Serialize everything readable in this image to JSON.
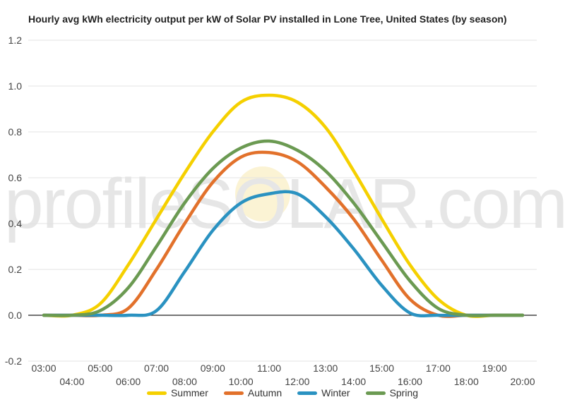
{
  "chart_data": {
    "type": "line",
    "title": "Hourly avg kWh electricity output per kW of Solar PV installed in Lone Tree, United States (by season)",
    "xlabel": "",
    "ylabel": "",
    "x": [
      "03:00",
      "04:00",
      "05:00",
      "06:00",
      "07:00",
      "08:00",
      "09:00",
      "10:00",
      "11:00",
      "12:00",
      "13:00",
      "14:00",
      "15:00",
      "16:00",
      "17:00",
      "18:00",
      "19:00",
      "20:00"
    ],
    "ylim": [
      -0.2,
      1.2
    ],
    "yticks": [
      "1.2",
      "1.0",
      "0.8",
      "0.6",
      "0.4",
      "0.2",
      "0.0",
      "-0.2"
    ],
    "grid": true,
    "legend": "bottom",
    "series": [
      {
        "name": "Summer",
        "color": "#f5d000",
        "values": [
          0.0,
          0.0,
          0.05,
          0.22,
          0.42,
          0.62,
          0.8,
          0.93,
          0.96,
          0.93,
          0.82,
          0.63,
          0.42,
          0.22,
          0.07,
          0.0,
          0.0,
          0.0
        ]
      },
      {
        "name": "Autumn",
        "color": "#e2712b",
        "values": [
          0.0,
          0.0,
          0.0,
          0.03,
          0.2,
          0.4,
          0.58,
          0.69,
          0.71,
          0.67,
          0.56,
          0.42,
          0.24,
          0.07,
          0.0,
          0.0,
          0.0,
          0.0
        ]
      },
      {
        "name": "Winter",
        "color": "#2a92c1",
        "values": [
          0.0,
          0.0,
          0.0,
          0.0,
          0.02,
          0.19,
          0.37,
          0.49,
          0.53,
          0.53,
          0.43,
          0.29,
          0.13,
          0.01,
          0.0,
          0.0,
          0.0,
          0.0
        ]
      },
      {
        "name": "Spring",
        "color": "#6b9a52",
        "values": [
          0.0,
          0.0,
          0.02,
          0.12,
          0.3,
          0.49,
          0.64,
          0.73,
          0.76,
          0.72,
          0.63,
          0.49,
          0.32,
          0.15,
          0.03,
          0.0,
          0.0,
          0.0
        ]
      }
    ]
  }
}
